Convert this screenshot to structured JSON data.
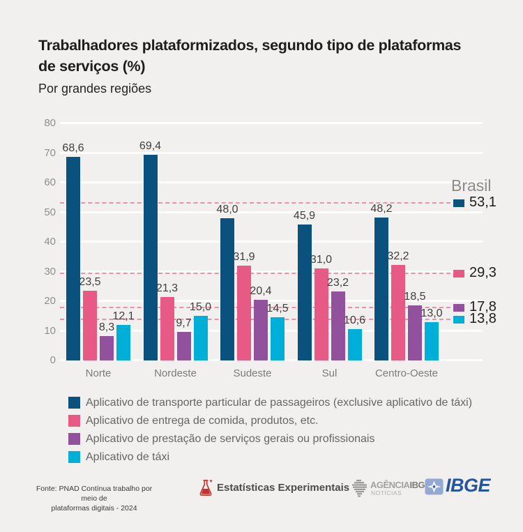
{
  "page": {
    "title_line1": "Trabalhadores plataformizados, segundo tipo de plataformas",
    "title_line2": "de serviços (%)",
    "subtitle": "Por grandes regiões"
  },
  "chart_data": {
    "type": "bar",
    "title": "Trabalhadores plataformizados, segundo tipo de plataformas de serviços (%)",
    "subtitle": "Por grandes regiões",
    "categories": [
      "Norte",
      "Nordeste",
      "Sudeste",
      "Sul",
      "Centro-Oeste"
    ],
    "series": [
      {
        "name": "Aplicativo de transporte particular de passageiros (exclusive aplicativo de táxi)",
        "color": "#0b517e",
        "values": [
          68.6,
          69.4,
          48.0,
          45.9,
          48.2
        ],
        "brasil": 53.1
      },
      {
        "name": "Aplicativo de entrega de comida, produtos, etc.",
        "color": "#e75a86",
        "values": [
          23.5,
          21.3,
          31.9,
          31.0,
          32.2
        ],
        "brasil": 29.3
      },
      {
        "name": "Aplicativo de prestação de serviços gerais ou profissionais",
        "color": "#92519c",
        "values": [
          8.3,
          9.7,
          20.4,
          23.2,
          18.5
        ],
        "brasil": 17.8
      },
      {
        "name": "Aplicativo de táxi",
        "color": "#00afd7",
        "values": [
          12.1,
          15.0,
          14.5,
          10.6,
          13.0
        ],
        "brasil": 13.8
      }
    ],
    "reference_label": "Brasil",
    "ylim": [
      0,
      80
    ],
    "yticks": [
      0,
      10,
      20,
      30,
      40,
      50,
      60,
      70,
      80
    ],
    "grid": "horizontal-white-lines",
    "reference_lines": "dashed-pink-at-brasil-values",
    "legend_position": "bottom-left",
    "decimal_separator": ","
  },
  "footer": {
    "source_line1": "Fonte: PNAD Contínua trabalho por meio de",
    "source_line2": "plataformas digitais - 2024",
    "experimental_label": "Estatísticas Experimentais",
    "agencia_word1": "AGÊNCIA",
    "agencia_word2": "IBGE",
    "agencia_sub": "NOTÍCIAS",
    "ibge_logo_text": "IBGE"
  },
  "colors": {
    "background": "#f2f0ee",
    "gridline": "#fdfdfc",
    "dashed_reference": "#e893ad",
    "navy": "#0b517e",
    "pink": "#e75a86",
    "purple": "#92519c",
    "cyan": "#00afd7",
    "flask_red": "#c4342f",
    "ibge_blue": "#24549c"
  }
}
